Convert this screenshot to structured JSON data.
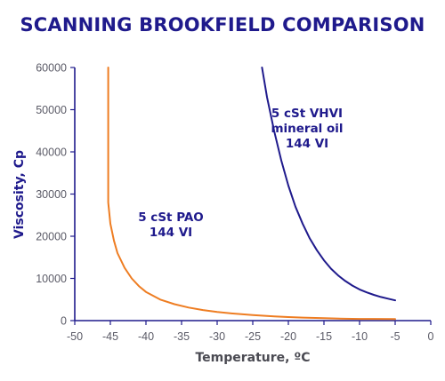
{
  "chart_data": {
    "type": "line",
    "title": "SCANNING BROOKFIELD COMPARISON",
    "xlabel": "Temperature, ºC",
    "ylabel": "Viscosity, Cp",
    "xlim": [
      -50,
      0
    ],
    "ylim": [
      0,
      60000
    ],
    "x_ticks": [
      "-50",
      "-45",
      "-40",
      "-35",
      "-30",
      "-25",
      "-20",
      "-15",
      "-10",
      "-5",
      "0"
    ],
    "y_ticks": [
      "0",
      "10000",
      "20000",
      "30000",
      "40000",
      "50000",
      "60000"
    ],
    "grid": false,
    "series": [
      {
        "name_lines": [
          "5 cSt PAO",
          "144 VI"
        ],
        "color": "#ee7d22",
        "x": [
          -45.3,
          -45.3,
          -45.0,
          -44.5,
          -44.0,
          -43.0,
          -42.0,
          -41.0,
          -40.0,
          -38.0,
          -36.0,
          -34.0,
          -32.0,
          -30.0,
          -28.0,
          -25.0,
          -22.0,
          -20.0,
          -18.0,
          -15.0,
          -12.0,
          -10.0,
          -8.0,
          -5.0
        ],
        "y": [
          60000,
          28000,
          23000,
          19000,
          16000,
          12500,
          10000,
          8200,
          6800,
          5000,
          3900,
          3100,
          2500,
          2050,
          1700,
          1300,
          1000,
          850,
          720,
          560,
          450,
          400,
          390,
          380
        ]
      },
      {
        "name_lines": [
          "5 cSt VHVI",
          "mineral oil",
          "144 VI"
        ],
        "color": "#1f1a8c",
        "x": [
          -23.7,
          -23.0,
          -22.0,
          -21.0,
          -20.0,
          -19.0,
          -18.0,
          -17.0,
          -16.0,
          -15.0,
          -14.0,
          -13.0,
          -12.0,
          -11.0,
          -10.0,
          -9.0,
          -8.0,
          -7.0,
          -6.0,
          -5.0
        ],
        "y": [
          60000,
          53000,
          45000,
          38000,
          32000,
          27000,
          23000,
          19500,
          16700,
          14300,
          12300,
          10700,
          9400,
          8300,
          7400,
          6700,
          6100,
          5600,
          5200,
          4800
        ]
      }
    ]
  }
}
